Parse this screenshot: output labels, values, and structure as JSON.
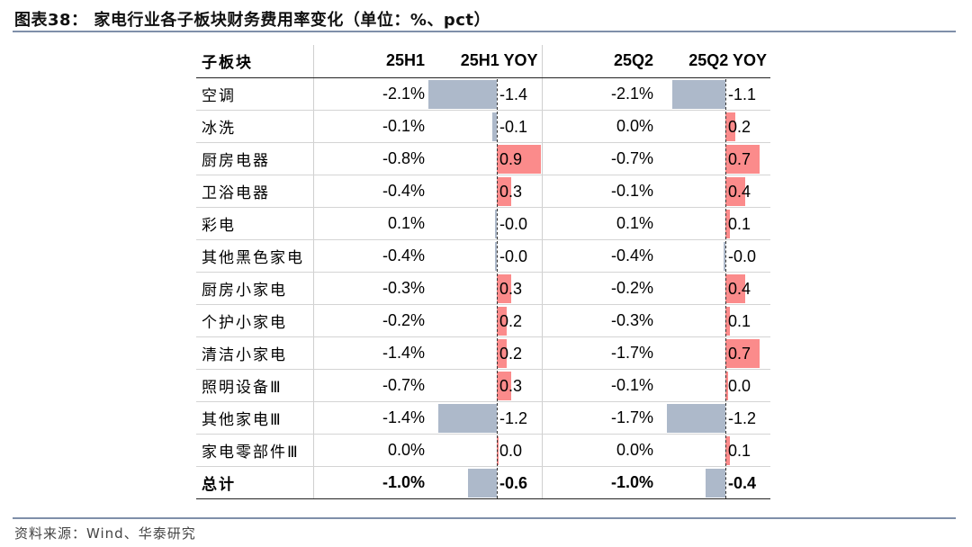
{
  "title": "图表38： 家电行业各子板块财务费用率变化（单位：%、pct）",
  "source": "资料来源：Wind、华泰研究",
  "colors": {
    "negative_bar": "#adb9ca",
    "positive_bar": "#fb8b8b",
    "rule": "#7f8fa9"
  },
  "table": {
    "headers": [
      "子板块",
      "25H1",
      "25H1 YOY",
      "25Q2",
      "25Q2 YOY"
    ],
    "rows": [
      {
        "name": "空调",
        "h1": "-2.1%",
        "h1_yoy": "-1.4",
        "h1_yoy_val": -1.4,
        "q2": "-2.1%",
        "q2_yoy": "-1.1",
        "q2_yoy_val": -1.1
      },
      {
        "name": "冰洗",
        "h1": "-0.1%",
        "h1_yoy": "-0.1",
        "h1_yoy_val": -0.1,
        "q2": "0.0%",
        "q2_yoy": "0.2",
        "q2_yoy_val": 0.2
      },
      {
        "name": "厨房电器",
        "h1": "-0.8%",
        "h1_yoy": "0.9",
        "h1_yoy_val": 0.9,
        "q2": "-0.7%",
        "q2_yoy": "0.7",
        "q2_yoy_val": 0.7
      },
      {
        "name": "卫浴电器",
        "h1": "-0.4%",
        "h1_yoy": "0.3",
        "h1_yoy_val": 0.3,
        "q2": "-0.1%",
        "q2_yoy": "0.4",
        "q2_yoy_val": 0.4
      },
      {
        "name": "彩电",
        "h1": "0.1%",
        "h1_yoy": "-0.0",
        "h1_yoy_val": -0.02,
        "q2": "0.1%",
        "q2_yoy": "0.1",
        "q2_yoy_val": 0.1
      },
      {
        "name": "其他黑色家电",
        "h1": "-0.4%",
        "h1_yoy": "-0.0",
        "h1_yoy_val": -0.02,
        "q2": "-0.4%",
        "q2_yoy": "-0.0",
        "q2_yoy_val": -0.02
      },
      {
        "name": "厨房小家电",
        "h1": "-0.3%",
        "h1_yoy": "0.3",
        "h1_yoy_val": 0.3,
        "q2": "-0.2%",
        "q2_yoy": "0.4",
        "q2_yoy_val": 0.4
      },
      {
        "name": "个护小家电",
        "h1": "-0.2%",
        "h1_yoy": "0.2",
        "h1_yoy_val": 0.2,
        "q2": "-0.3%",
        "q2_yoy": "0.1",
        "q2_yoy_val": 0.1
      },
      {
        "name": "清洁小家电",
        "h1": "-1.4%",
        "h1_yoy": "0.2",
        "h1_yoy_val": 0.2,
        "q2": "-1.7%",
        "q2_yoy": "0.7",
        "q2_yoy_val": 0.7
      },
      {
        "name": "照明设备Ⅲ",
        "h1": "-0.7%",
        "h1_yoy": "0.3",
        "h1_yoy_val": 0.3,
        "q2": "-0.1%",
        "q2_yoy": "0.0",
        "q2_yoy_val": 0.05
      },
      {
        "name": "其他家电Ⅲ",
        "h1": "-1.4%",
        "h1_yoy": "-1.2",
        "h1_yoy_val": -1.2,
        "q2": "-1.7%",
        "q2_yoy": "-1.2",
        "q2_yoy_val": -1.2
      },
      {
        "name": "家电零部件Ⅲ",
        "h1": "0.0%",
        "h1_yoy": "0.0",
        "h1_yoy_val": 0.0,
        "q2": "0.0%",
        "q2_yoy": "0.1",
        "q2_yoy_val": 0.1
      }
    ],
    "total": {
      "name": "总计",
      "h1": "-1.0%",
      "h1_yoy": "-0.6",
      "h1_yoy_val": -0.6,
      "q2": "-1.0%",
      "q2_yoy": "-0.4",
      "q2_yoy_val": -0.4
    }
  }
}
